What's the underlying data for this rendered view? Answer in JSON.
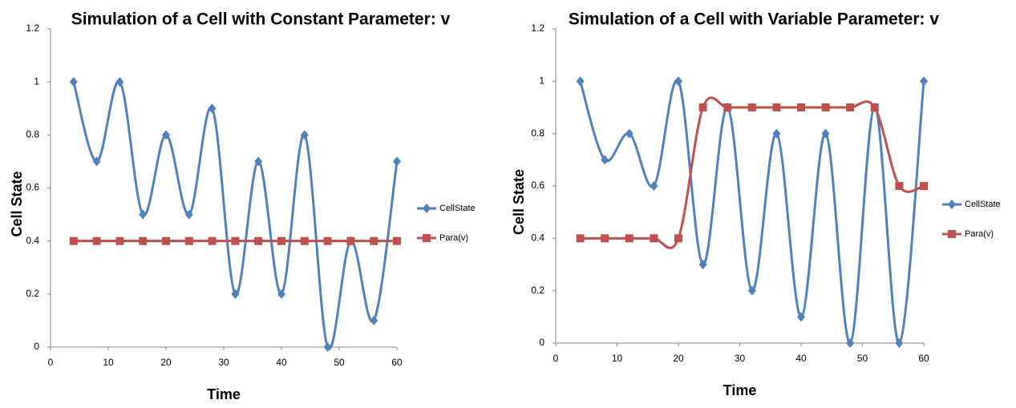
{
  "chart_data": [
    {
      "type": "line",
      "title": "Simulation of a Cell with Constant Parameter: v",
      "x_label": "Time",
      "y_label": "Cell State",
      "x": [
        4,
        8,
        12,
        16,
        20,
        24,
        28,
        32,
        36,
        40,
        44,
        48,
        52,
        56,
        60
      ],
      "series": [
        {
          "name": "CellState",
          "color": "#4f81bd",
          "marker": "diamond",
          "values": [
            1,
            0.7,
            1,
            0.5,
            0.8,
            0.5,
            0.9,
            0.2,
            0.7,
            0.2,
            0.8,
            0,
            0.4,
            0.1,
            0.7
          ]
        },
        {
          "name": "Para(v)",
          "color": "#c0504d",
          "marker": "square",
          "values": [
            0.4,
            0.4,
            0.4,
            0.4,
            0.4,
            0.4,
            0.4,
            0.4,
            0.4,
            0.4,
            0.4,
            0.4,
            0.4,
            0.4,
            0.4
          ]
        }
      ],
      "xlim": [
        0,
        60
      ],
      "xticks": [
        0,
        10,
        20,
        30,
        40,
        50,
        60
      ],
      "ylim": [
        0,
        1.2
      ],
      "yticks": [
        0,
        0.2,
        0.4,
        0.6,
        0.8,
        1,
        1.2
      ],
      "smooth": true,
      "legend": "right"
    },
    {
      "type": "line",
      "title": "Simulation of a Cell with Variable Parameter: v",
      "x_label": "Time",
      "y_label": "Cell State",
      "x": [
        4,
        8,
        12,
        16,
        20,
        24,
        28,
        32,
        36,
        40,
        44,
        48,
        52,
        56,
        60
      ],
      "series": [
        {
          "name": "CellState",
          "color": "#4f81bd",
          "marker": "diamond",
          "values": [
            1,
            0.7,
            0.8,
            0.6,
            1,
            0.3,
            0.9,
            0.2,
            0.8,
            0.1,
            0.8,
            0,
            0.9,
            0,
            1
          ]
        },
        {
          "name": "Para(v)",
          "color": "#c0504d",
          "marker": "square",
          "values": [
            0.4,
            0.4,
            0.4,
            0.4,
            0.4,
            0.9,
            0.9,
            0.9,
            0.9,
            0.9,
            0.9,
            0.9,
            0.9,
            0.6,
            0.6
          ]
        }
      ],
      "xlim": [
        0,
        60
      ],
      "xticks": [
        0,
        10,
        20,
        30,
        40,
        50,
        60
      ],
      "ylim": [
        0,
        1.2
      ],
      "yticks": [
        0,
        0.2,
        0.4,
        0.6,
        0.8,
        1,
        1.2
      ],
      "smooth": true,
      "legend": "right"
    }
  ]
}
